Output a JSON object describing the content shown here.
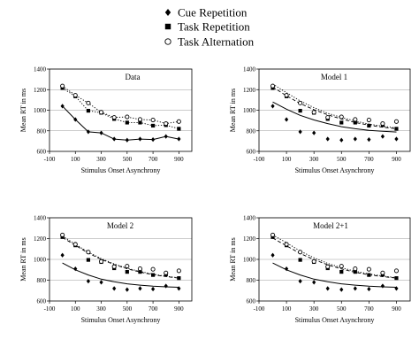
{
  "legend": {
    "items": [
      {
        "marker": "diamond",
        "label": "Cue Repetition"
      },
      {
        "marker": "square",
        "label": "Task Repetition"
      },
      {
        "marker": "circle",
        "label": "Task Alternation"
      }
    ]
  },
  "chart_data": [
    {
      "type": "line",
      "title": "Data",
      "xlabel": "Stimulus Onset Asynchrony",
      "ylabel": "Mean RT in ms",
      "xlim": [
        -100,
        1000
      ],
      "ylim": [
        600,
        1400
      ],
      "xticks": [
        -100,
        100,
        300,
        500,
        700,
        900
      ],
      "yticks": [
        600,
        800,
        1000,
        1200,
        1400
      ],
      "x": [
        0,
        100,
        200,
        300,
        400,
        500,
        600,
        700,
        800,
        900
      ],
      "series": [
        {
          "name": "Cue Repetition",
          "marker": "diamond",
          "style": "solid",
          "values": [
            1040,
            910,
            790,
            780,
            720,
            710,
            720,
            715,
            745,
            720
          ]
        },
        {
          "name": "Task Repetition",
          "marker": "square",
          "style": "dotted",
          "values": [
            1215,
            1135,
            995,
            975,
            915,
            880,
            880,
            850,
            855,
            820
          ]
        },
        {
          "name": "Task Alternation",
          "marker": "circle",
          "style": "dotted",
          "values": [
            1235,
            1145,
            1070,
            980,
            930,
            935,
            910,
            905,
            870,
            890
          ]
        }
      ]
    },
    {
      "type": "line",
      "title": "Model 1",
      "xlabel": "Stimulus Onset Asynchrony",
      "ylabel": "Mean RT in ms",
      "xlim": [
        -100,
        1000
      ],
      "ylim": [
        600,
        1400
      ],
      "xticks": [
        -100,
        100,
        300,
        500,
        700,
        900
      ],
      "yticks": [
        600,
        800,
        1000,
        1200,
        1400
      ],
      "x": [
        0,
        100,
        200,
        300,
        400,
        500,
        600,
        700,
        800,
        900
      ],
      "series": [
        {
          "name": "Cue Repetition",
          "marker": "diamond",
          "style": "points",
          "values": [
            1040,
            910,
            790,
            780,
            720,
            710,
            720,
            715,
            745,
            720
          ]
        },
        {
          "name": "Task Repetition",
          "marker": "square",
          "style": "points",
          "values": [
            1215,
            1135,
            995,
            975,
            915,
            880,
            880,
            850,
            855,
            820
          ]
        },
        {
          "name": "Task Alternation",
          "marker": "circle",
          "style": "points",
          "values": [
            1235,
            1145,
            1070,
            980,
            930,
            935,
            910,
            905,
            870,
            890
          ]
        },
        {
          "name": "Cue Repetition fit",
          "style": "solid",
          "values": [
            1080,
            1010,
            950,
            905,
            870,
            840,
            820,
            805,
            795,
            788
          ]
        },
        {
          "name": "Task Repetition fit",
          "style": "dashed",
          "values": [
            1225,
            1140,
            1065,
            1005,
            955,
            915,
            880,
            855,
            835,
            820
          ]
        },
        {
          "name": "Task Alternation fit",
          "style": "dotted",
          "values": [
            1255,
            1170,
            1090,
            1025,
            970,
            930,
            895,
            865,
            845,
            828
          ]
        }
      ]
    },
    {
      "type": "line",
      "title": "Model 2",
      "xlabel": "Stimulus Onset Asynchrony",
      "ylabel": "Mean RT in ms",
      "xlim": [
        -100,
        1000
      ],
      "ylim": [
        600,
        1400
      ],
      "xticks": [
        -100,
        100,
        300,
        500,
        700,
        900
      ],
      "yticks": [
        600,
        800,
        1000,
        1200,
        1400
      ],
      "x": [
        0,
        100,
        200,
        300,
        400,
        500,
        600,
        700,
        800,
        900
      ],
      "series": [
        {
          "name": "Cue Repetition",
          "marker": "diamond",
          "style": "points",
          "values": [
            1040,
            910,
            790,
            780,
            720,
            710,
            720,
            715,
            745,
            720
          ]
        },
        {
          "name": "Task Repetition",
          "marker": "square",
          "style": "points",
          "values": [
            1215,
            1135,
            995,
            975,
            915,
            880,
            880,
            850,
            855,
            820
          ]
        },
        {
          "name": "Task Alternation",
          "marker": "circle",
          "style": "points",
          "values": [
            1235,
            1145,
            1070,
            980,
            930,
            935,
            910,
            905,
            870,
            890
          ]
        },
        {
          "name": "Cue Repetition fit",
          "style": "solid",
          "values": [
            965,
            900,
            850,
            810,
            785,
            765,
            752,
            742,
            736,
            732
          ]
        },
        {
          "name": "Task Repetition fit",
          "style": "dashed",
          "values": [
            1210,
            1135,
            1060,
            1000,
            950,
            910,
            878,
            853,
            835,
            820
          ]
        },
        {
          "name": "Task Alternation fit",
          "style": "dotted",
          "values": [
            1225,
            1145,
            1070,
            1008,
            956,
            915,
            883,
            858,
            838,
            823
          ]
        }
      ]
    },
    {
      "type": "line",
      "title": "Model 2+1",
      "xlabel": "Stimulus Onset Asynchrony",
      "ylabel": "Mean RT in ms",
      "xlim": [
        -100,
        1000
      ],
      "ylim": [
        600,
        1400
      ],
      "xticks": [
        -100,
        100,
        300,
        500,
        700,
        900
      ],
      "yticks": [
        600,
        800,
        1000,
        1200,
        1400
      ],
      "x": [
        0,
        100,
        200,
        300,
        400,
        500,
        600,
        700,
        800,
        900
      ],
      "series": [
        {
          "name": "Cue Repetition",
          "marker": "diamond",
          "style": "points",
          "values": [
            1040,
            910,
            790,
            780,
            720,
            710,
            720,
            715,
            745,
            720
          ]
        },
        {
          "name": "Task Repetition",
          "marker": "square",
          "style": "points",
          "values": [
            1215,
            1135,
            995,
            975,
            915,
            880,
            880,
            850,
            855,
            820
          ]
        },
        {
          "name": "Task Alternation",
          "marker": "circle",
          "style": "points",
          "values": [
            1235,
            1145,
            1070,
            980,
            930,
            935,
            910,
            905,
            870,
            890
          ]
        },
        {
          "name": "Cue Repetition fit",
          "style": "solid",
          "values": [
            965,
            900,
            850,
            810,
            785,
            765,
            752,
            742,
            736,
            732
          ]
        },
        {
          "name": "Task Repetition fit",
          "style": "dashed",
          "values": [
            1205,
            1130,
            1057,
            998,
            948,
            908,
            876,
            852,
            834,
            820
          ]
        },
        {
          "name": "Task Alternation fit",
          "style": "dotted",
          "values": [
            1235,
            1160,
            1080,
            1015,
            962,
            920,
            886,
            860,
            840,
            825
          ]
        }
      ]
    }
  ]
}
